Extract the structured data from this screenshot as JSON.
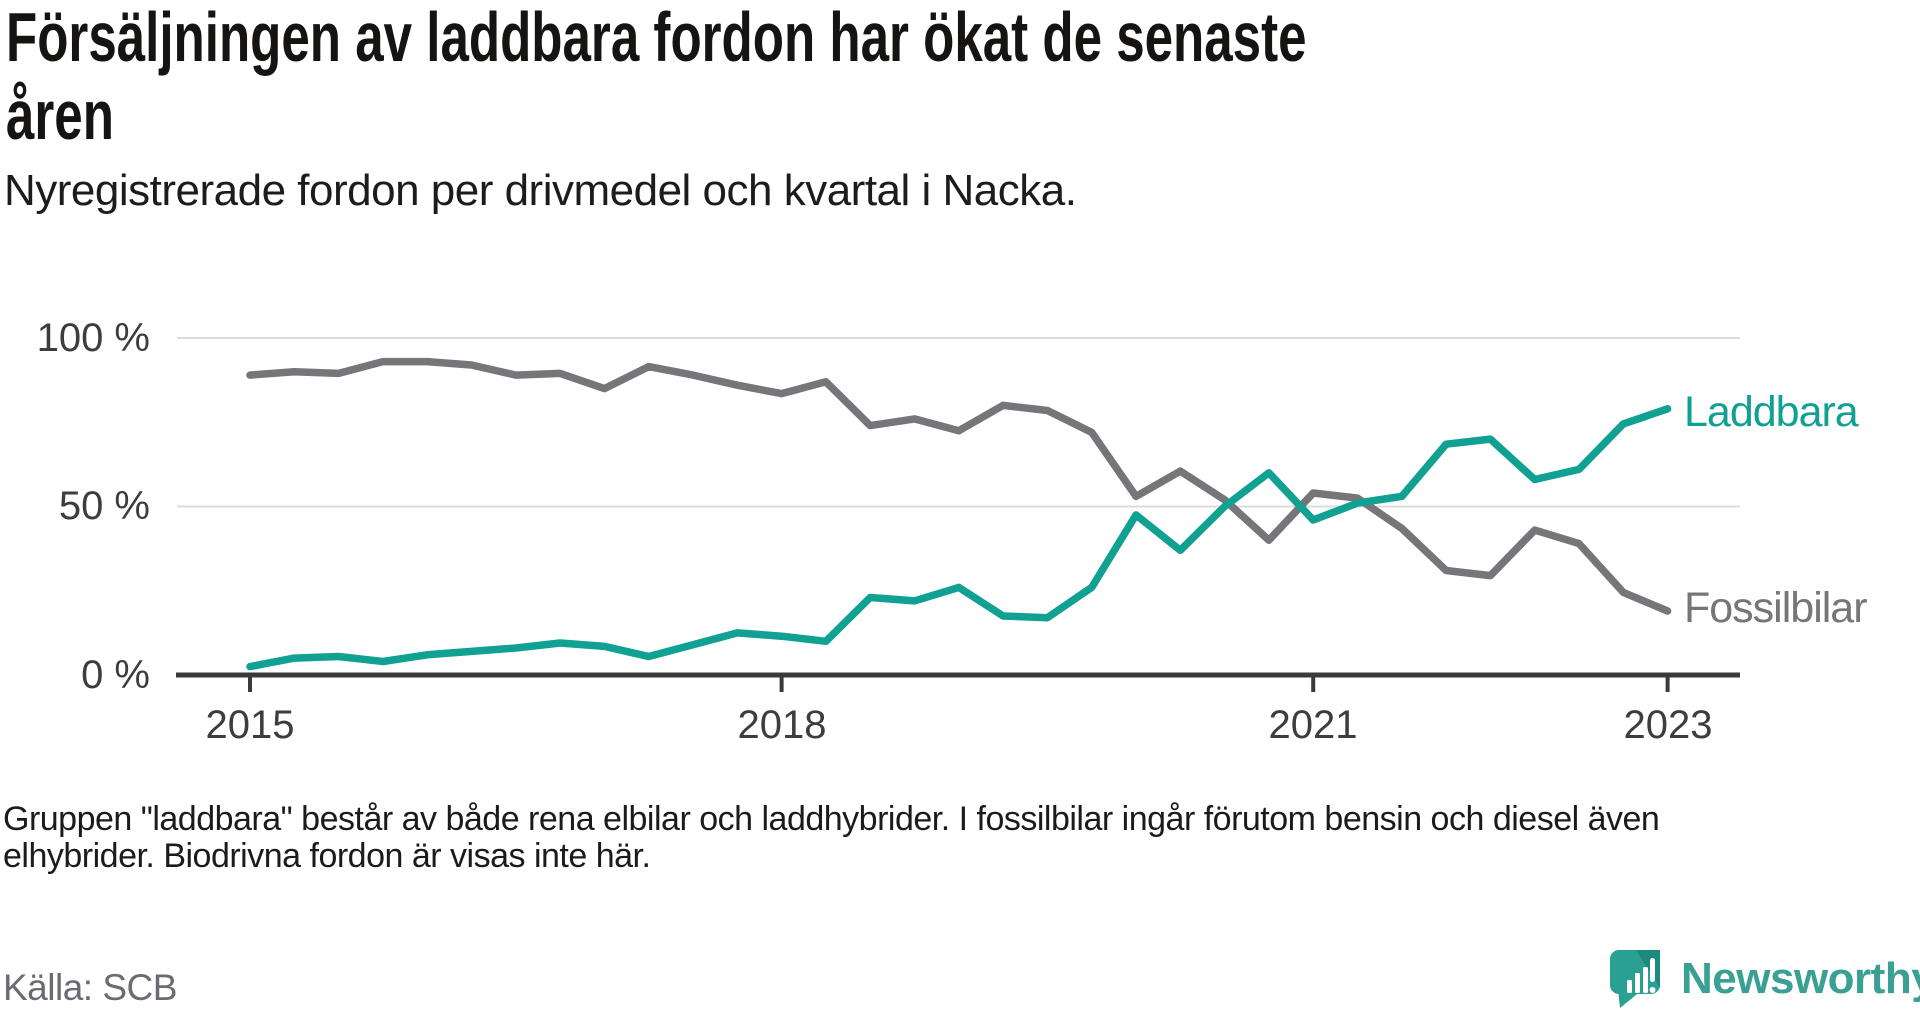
{
  "header": {
    "title": "Försäljningen av laddbara fordon har ökat de senaste åren",
    "title_lines": [
      "Försäljningen av laddbara fordon har ökat de senaste",
      "åren"
    ],
    "subtitle": "Nyregistrerade fordon per drivmedel och kvartal i Nacka."
  },
  "chart_data": {
    "type": "line",
    "title": "Försäljningen av laddbara fordon har ökat de senaste åren",
    "subtitle": "Nyregistrerade fordon per drivmedel och kvartal i Nacka.",
    "x_unit": "quarter",
    "x_range": [
      "2015 Q1",
      "2023 Q1"
    ],
    "x_tick_labels": [
      "2015",
      "2018",
      "2021",
      "2023"
    ],
    "x_tick_quarter_index": [
      0,
      12,
      24,
      32
    ],
    "y_tick_labels": [
      "0 %",
      "50 %",
      "100 %"
    ],
    "y_tick_values": [
      0,
      50,
      100
    ],
    "ylim": [
      0,
      100
    ],
    "xlabel": "",
    "ylabel": "",
    "grid": "horizontal-only",
    "legend_position": "right-end-of-lines",
    "quarters": [
      "2015 Q1",
      "2015 Q2",
      "2015 Q3",
      "2015 Q4",
      "2016 Q1",
      "2016 Q2",
      "2016 Q3",
      "2016 Q4",
      "2017 Q1",
      "2017 Q2",
      "2017 Q3",
      "2017 Q4",
      "2018 Q1",
      "2018 Q2",
      "2018 Q3",
      "2018 Q4",
      "2019 Q1",
      "2019 Q2",
      "2019 Q3",
      "2019 Q4",
      "2020 Q1",
      "2020 Q2",
      "2020 Q3",
      "2020 Q4",
      "2021 Q1",
      "2021 Q2",
      "2021 Q3",
      "2021 Q4",
      "2022 Q1",
      "2022 Q2",
      "2022 Q3",
      "2022 Q4",
      "2023 Q1"
    ],
    "series": [
      {
        "name": "Laddbara",
        "color": "#11a192",
        "values": [
          2.5,
          5,
          5.5,
          4,
          6,
          7,
          8,
          9.5,
          8.5,
          5.5,
          9,
          12.5,
          11.5,
          10,
          23,
          22,
          26,
          17.5,
          17,
          26,
          47.5,
          37,
          50,
          60,
          46,
          51,
          53,
          68.5,
          70,
          58,
          61,
          74.5,
          79
        ]
      },
      {
        "name": "Fossilbilar",
        "color": "#76757a",
        "values": [
          89,
          90,
          89.5,
          93,
          93,
          92,
          89,
          89.5,
          85,
          91.5,
          89,
          86,
          83.5,
          87,
          74,
          76,
          72.5,
          80,
          78.5,
          72,
          53,
          60.5,
          52,
          40,
          54,
          52.5,
          43.5,
          31,
          29.5,
          43,
          39,
          24.5,
          19
        ]
      }
    ]
  },
  "footnote": {
    "lines": [
      "Gruppen \"laddbara\" består av både rena elbilar och laddhybrider. I fossilbilar ingår förutom bensin och diesel även",
      "elhybrider. Biodrivna fordon är visas inte här."
    ],
    "text": "Gruppen \"laddbara\" består av både rena elbilar och laddhybrider. I fossilbilar ingår förutom bensin och diesel även elhybrider. Biodrivna fordon är visas inte här."
  },
  "source": {
    "label": "Källa: SCB"
  },
  "branding": {
    "name": "Newsworthy"
  },
  "colors": {
    "laddbara": "#11a192",
    "fossilbilar": "#76757a",
    "axis": "#3a3a3a",
    "gridline": "#dcdcdc",
    "tick_text": "#3d3d3d",
    "title_text": "#161412",
    "source_text": "#6c6b74",
    "logo_teal": "#2aa093",
    "logo_shade": "#1e8a7e",
    "logo_text": "#3aa093"
  }
}
